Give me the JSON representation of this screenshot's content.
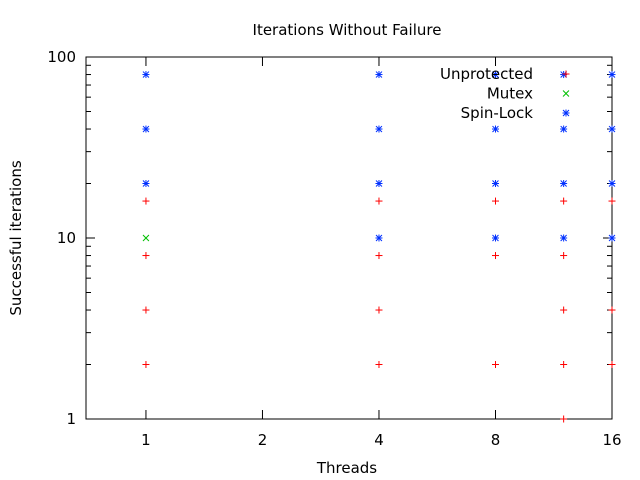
{
  "chart_data": {
    "type": "scatter",
    "title": "Iterations Without Failure",
    "xlabel": "Threads",
    "ylabel": "Successful iterations",
    "x_scale": "log2",
    "y_scale": "log10",
    "xlim": [
      0.7,
      16
    ],
    "ylim": [
      1,
      100
    ],
    "x_ticks": [
      1,
      2,
      4,
      8,
      16
    ],
    "x_tick_labels": [
      "1",
      "2",
      "4",
      "8",
      "16"
    ],
    "y_ticks": [
      1,
      10,
      100
    ],
    "y_tick_labels": [
      "1",
      "10",
      "100"
    ],
    "grid": false,
    "legend_position": "top-right",
    "series": [
      {
        "name": "Unprotected",
        "color": "#ff0000",
        "marker": "plus",
        "points": [
          [
            1,
            2
          ],
          [
            1,
            4
          ],
          [
            1,
            8
          ],
          [
            1,
            16
          ],
          [
            4,
            2
          ],
          [
            4,
            4
          ],
          [
            4,
            8
          ],
          [
            4,
            16
          ],
          [
            8,
            2
          ],
          [
            8,
            8
          ],
          [
            8,
            16
          ],
          [
            12,
            1
          ],
          [
            12,
            2
          ],
          [
            12,
            4
          ],
          [
            12,
            8
          ],
          [
            12,
            16
          ],
          [
            16,
            2
          ],
          [
            16,
            4
          ],
          [
            16,
            16
          ]
        ]
      },
      {
        "name": "Mutex",
        "color": "#00c000",
        "marker": "x",
        "points": [
          [
            1,
            10
          ]
        ]
      },
      {
        "name": "Spin-Lock",
        "color": "#0030ff",
        "marker": "star",
        "points": [
          [
            1,
            20
          ],
          [
            1,
            40
          ],
          [
            1,
            80
          ],
          [
            4,
            10
          ],
          [
            4,
            20
          ],
          [
            4,
            40
          ],
          [
            4,
            80
          ],
          [
            8,
            10
          ],
          [
            8,
            20
          ],
          [
            8,
            40
          ],
          [
            8,
            80
          ],
          [
            12,
            10
          ],
          [
            12,
            20
          ],
          [
            12,
            40
          ],
          [
            12,
            80
          ],
          [
            16,
            10
          ],
          [
            16,
            20
          ],
          [
            16,
            40
          ],
          [
            16,
            80
          ]
        ]
      }
    ]
  }
}
